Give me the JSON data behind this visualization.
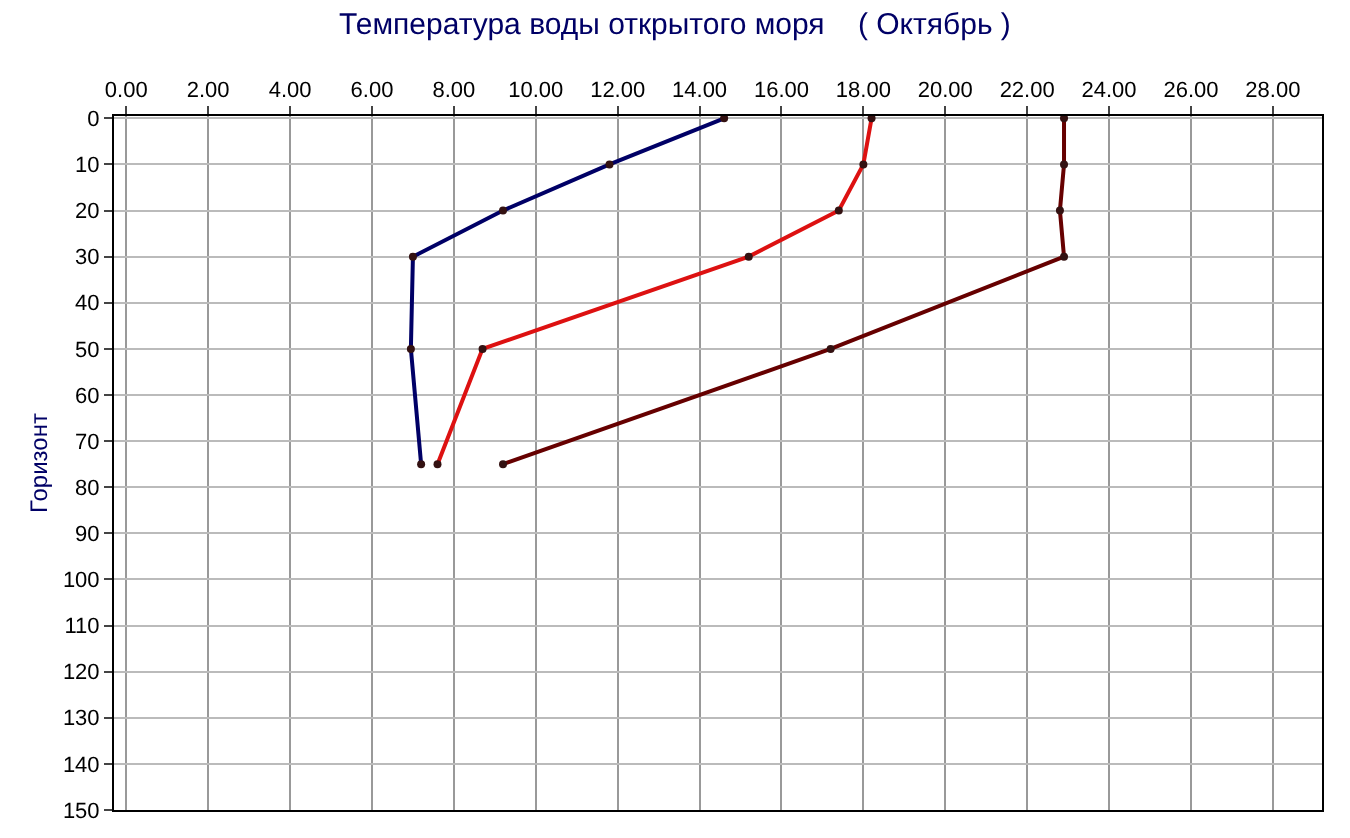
{
  "chart_data": {
    "type": "line",
    "title": "Температура воды открытого моря    ( Октябрь )",
    "ylabel": "Горизонт",
    "series": [
      {
        "color": "#000066",
        "x": [
          14.6,
          11.8,
          9.2,
          7.0,
          6.95,
          7.2
        ],
        "values": [
          0,
          10,
          20,
          30,
          50,
          75
        ]
      },
      {
        "color": "#dd1111",
        "x": [
          18.2,
          18.0,
          17.4,
          15.2,
          8.7,
          7.6
        ],
        "values": [
          0,
          10,
          20,
          30,
          50,
          75
        ]
      },
      {
        "color": "#660000",
        "x": [
          22.9,
          22.9,
          22.8,
          22.9,
          17.2,
          9.2
        ],
        "values": [
          0,
          10,
          20,
          30,
          50,
          75
        ]
      }
    ],
    "xlim": [
      -0.3,
      29.2
    ],
    "ylim": [
      150,
      -0.5
    ],
    "xticks": [
      {
        "value": 0,
        "label": "0.00"
      },
      {
        "value": 2,
        "label": "2.00"
      },
      {
        "value": 4,
        "label": "4.00"
      },
      {
        "value": 6,
        "label": "6.00"
      },
      {
        "value": 8,
        "label": "8.00"
      },
      {
        "value": 10,
        "label": "10.00"
      },
      {
        "value": 12,
        "label": "12.00"
      },
      {
        "value": 14,
        "label": "14.00"
      },
      {
        "value": 16,
        "label": "16.00"
      },
      {
        "value": 18,
        "label": "18.00"
      },
      {
        "value": 20,
        "label": "20.00"
      },
      {
        "value": 22,
        "label": "22.00"
      },
      {
        "value": 24,
        "label": "24.00"
      },
      {
        "value": 26,
        "label": "26.00"
      },
      {
        "value": 28,
        "label": "28.00"
      }
    ],
    "yticks": [
      0,
      10,
      20,
      30,
      40,
      50,
      60,
      70,
      80,
      90,
      100,
      110,
      120,
      130,
      140,
      150
    ],
    "grid": true,
    "marker": "circle",
    "line_style": "solid"
  }
}
